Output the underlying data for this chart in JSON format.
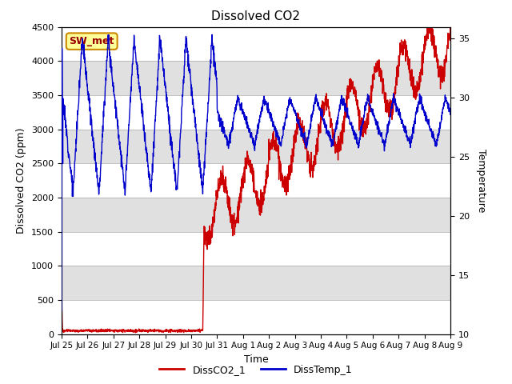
{
  "title": "Dissolved CO2",
  "xlabel": "Time",
  "ylabel_left": "Dissolved CO2 (ppm)",
  "ylabel_right": "Temperature",
  "legend_label1": "DissCO2_1",
  "legend_label2": "DissTemp_1",
  "station_label": "SW_met",
  "co2_color": "#cc0000",
  "temp_color": "#0000cc",
  "co2_ylim": [
    0,
    4500
  ],
  "temp_ylim": [
    10,
    36
  ],
  "background_color": "#ffffff",
  "band_color_light": "#ffffff",
  "band_color_dark": "#e0e0e0",
  "n_days": 15,
  "tick_labels": [
    "Jul 25",
    "Jul 26",
    "Jul 27",
    "Jul 28",
    "Jul 29",
    "Jul 30",
    "Jul 31",
    "Aug 1",
    "Aug 2",
    "Aug 3",
    "Aug 4",
    "Aug 5",
    "Aug 6",
    "Aug 7",
    "Aug 8",
    "Aug 9"
  ]
}
